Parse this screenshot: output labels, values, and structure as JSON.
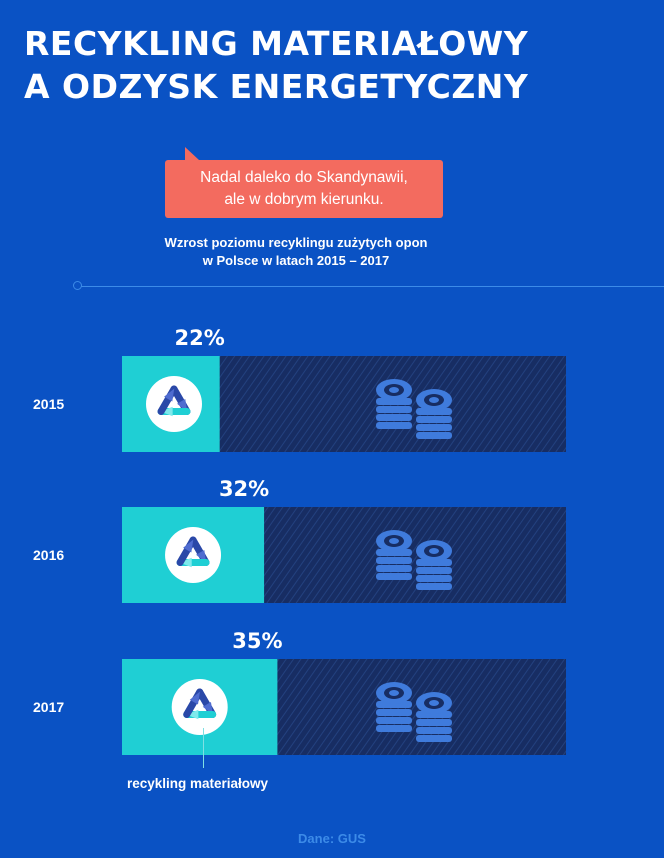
{
  "title": {
    "line1": "RECYKLING MATERIAŁOWY",
    "line2": "A ODZYSK ENERGETYCZNY"
  },
  "callout": {
    "line1": "Nadal daleko do Skandynawii,",
    "line2": "ale w dobrym kierunku."
  },
  "subtitle": {
    "line1": "Wzrost poziomu recyklingu zużytych opon",
    "line2": "w Polsce w latach 2015 – 2017"
  },
  "legend_label": "recykling materiałowy",
  "source": "Dane: GUS",
  "colors": {
    "background": "#0a52c4",
    "recycling": "#1fcfd4",
    "remainder": "#172d63",
    "accent": "#f36b5f",
    "tire_icon": "#3f7bdc"
  },
  "icons": {
    "recycling": "recycle-icon",
    "remainder": "tire-stack-icon"
  },
  "chart_data": {
    "type": "bar",
    "orientation": "horizontal",
    "stacked": true,
    "categories": [
      "2015",
      "2016",
      "2017"
    ],
    "series": [
      {
        "name": "recykling materiałowy",
        "values": [
          22,
          32,
          35
        ]
      }
    ],
    "value_labels": [
      "22%",
      "32%",
      "35%"
    ],
    "xlim": [
      0,
      100
    ],
    "unit": "%"
  }
}
